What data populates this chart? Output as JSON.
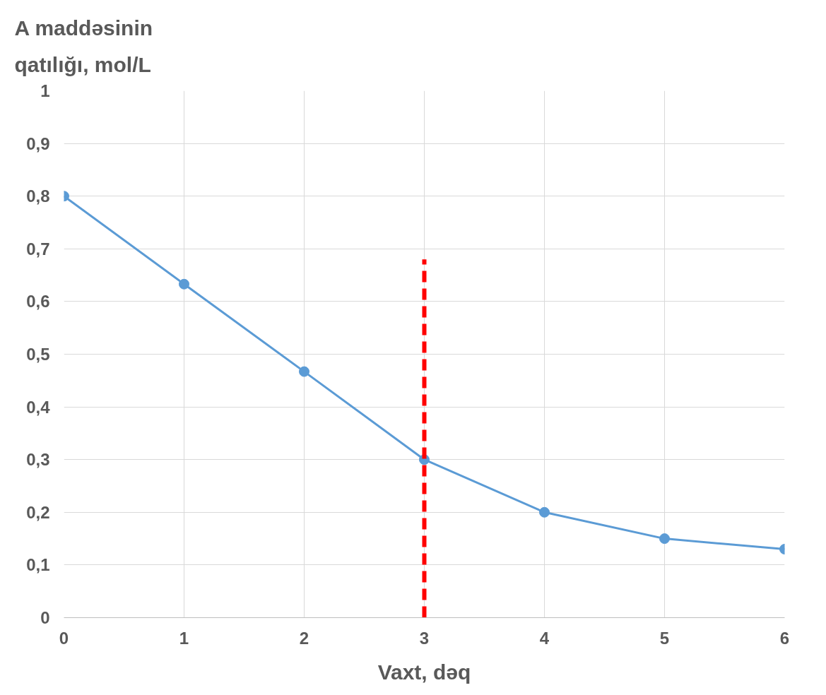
{
  "chart_data": {
    "type": "line",
    "ylabel": "A maddəsinin qatılığı, mol/L",
    "xlabel": "Vaxt, dəq",
    "x": [
      0,
      1,
      2,
      3,
      4,
      5,
      6
    ],
    "series": [
      {
        "color": "#5b9bd5",
        "values": [
          0.8,
          0.633,
          0.467,
          0.3,
          0.2,
          0.15,
          0.13
        ],
        "marker": "circle",
        "line_style": "solid"
      },
      {
        "color": "#ff0000",
        "x": [
          3,
          3
        ],
        "values": [
          0,
          0.68
        ],
        "marker": "none",
        "line_style": "dashed"
      }
    ],
    "xlim": [
      0,
      6
    ],
    "xticks": [
      0,
      1,
      2,
      3,
      4,
      5,
      6
    ],
    "ylim": [
      0,
      1
    ],
    "yticks": [
      {
        "value": 0,
        "label": "0"
      },
      {
        "value": 0.1,
        "label": "0,1"
      },
      {
        "value": 0.2,
        "label": "0,2"
      },
      {
        "value": 0.3,
        "label": "0,3"
      },
      {
        "value": 0.4,
        "label": "0,4"
      },
      {
        "value": 0.5,
        "label": "0,5"
      },
      {
        "value": 0.6,
        "label": "0,6"
      },
      {
        "value": 0.7,
        "label": "0,7"
      },
      {
        "value": 0.8,
        "label": "0,8"
      },
      {
        "value": 0.9,
        "label": "0,9"
      },
      {
        "value": 1,
        "label": "1"
      }
    ],
    "grid": true
  }
}
